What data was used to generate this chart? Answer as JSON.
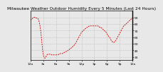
{
  "title": "Milwaukee Weather Outdoor Humidity Every 5 Minutes (Last 24 Hours)",
  "ylim": [
    25,
    100
  ],
  "yticks": [
    30,
    40,
    50,
    60,
    70,
    80,
    90
  ],
  "xlim": [
    0,
    287
  ],
  "background_color": "#e8e8e8",
  "plot_bg_color": "#e8e8e8",
  "line_color": "#cc0000",
  "title_fontsize": 4.2,
  "tick_fontsize": 3.2,
  "humidity": [
    86,
    86,
    87,
    87,
    88,
    88,
    89,
    89,
    90,
    90,
    90,
    90,
    90,
    90,
    89,
    89,
    89,
    89,
    89,
    89,
    89,
    88,
    87,
    86,
    84,
    82,
    79,
    76,
    72,
    68,
    63,
    57,
    51,
    45,
    40,
    36,
    33,
    31,
    30,
    29,
    28,
    28,
    29,
    30,
    31,
    32,
    33,
    33,
    34,
    34,
    34,
    34,
    34,
    34,
    34,
    34,
    34,
    34,
    34,
    33,
    33,
    33,
    33,
    33,
    33,
    33,
    33,
    33,
    33,
    33,
    33,
    33,
    33,
    33,
    33,
    33,
    33,
    33,
    33,
    34,
    34,
    34,
    34,
    35,
    35,
    35,
    35,
    35,
    35,
    35,
    35,
    36,
    36,
    36,
    36,
    37,
    37,
    37,
    37,
    38,
    38,
    38,
    39,
    39,
    39,
    40,
    40,
    40,
    41,
    41,
    42,
    42,
    42,
    43,
    43,
    44,
    44,
    45,
    45,
    46,
    46,
    47,
    47,
    48,
    49,
    49,
    50,
    51,
    52,
    53,
    54,
    55,
    56,
    57,
    58,
    59,
    60,
    61,
    62,
    63,
    64,
    65,
    66,
    67,
    67,
    68,
    69,
    69,
    70,
    70,
    71,
    71,
    72,
    72,
    73,
    73,
    74,
    74,
    74,
    75,
    75,
    75,
    76,
    76,
    76,
    77,
    77,
    77,
    77,
    77,
    77,
    77,
    77,
    77,
    77,
    77,
    77,
    77,
    77,
    77,
    77,
    77,
    77,
    77,
    77,
    77,
    77,
    77,
    77,
    77,
    77,
    76,
    76,
    76,
    75,
    75,
    75,
    75,
    74,
    74,
    74,
    73,
    73,
    72,
    72,
    71,
    71,
    70,
    70,
    69,
    69,
    68,
    68,
    67,
    66,
    65,
    64,
    63,
    62,
    62,
    61,
    60,
    60,
    59,
    58,
    57,
    56,
    55,
    54,
    54,
    53,
    52,
    52,
    52,
    52,
    52,
    53,
    53,
    54,
    54,
    55,
    56,
    57,
    58,
    59,
    60,
    61,
    62,
    63,
    64,
    65,
    66,
    67,
    68,
    69,
    70,
    71,
    72,
    73,
    74,
    75,
    76,
    77,
    77,
    78,
    78,
    79,
    79,
    80,
    80,
    81,
    81,
    82,
    82,
    83,
    83,
    84,
    84,
    85,
    85,
    86,
    86,
    87,
    87,
    88,
    88,
    89,
    89
  ],
  "xtick_labels": [
    "12a",
    "3a",
    "6a",
    "9a",
    "12p",
    "3p",
    "6p",
    "9p",
    "12a"
  ]
}
